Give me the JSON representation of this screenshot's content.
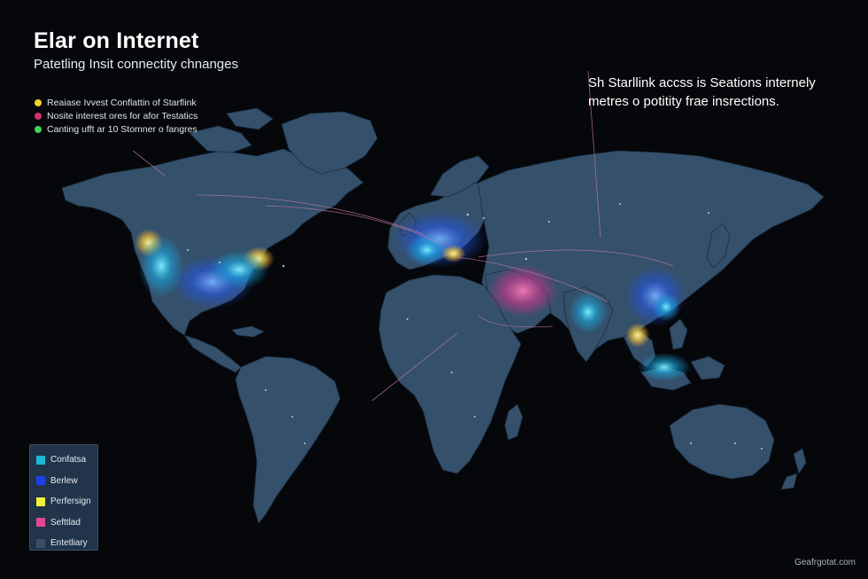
{
  "title": "Elar on Internet",
  "subtitle": "Patetling Insit connectity chnanges",
  "top_legend": [
    {
      "label": "Reaiase Ivvest Conflattin of Starflink",
      "color": "#f2d230"
    },
    {
      "label": "Nosite interest ores for afor Testatics",
      "color": "#d4336e"
    },
    {
      "label": "Canting ufft ar 10 Stomner o fangres",
      "color": "#3fd35a"
    }
  ],
  "annotation": {
    "line1": "Sh Starllink accss is Seations internely",
    "line2": "metres o potitity frae insrections."
  },
  "legend": [
    {
      "label": "Confatsa",
      "color": "#19b8d6"
    },
    {
      "label": "Berlew",
      "color": "#1c40e8"
    },
    {
      "label": "Perfersign",
      "color": "#f3f03a"
    },
    {
      "label": "Sefttlad",
      "color": "#e04a8f"
    },
    {
      "label": "Entetliary",
      "color": "#3b4e63"
    }
  ],
  "credit": "Geafrgotat.com",
  "colors": {
    "background": "#05070b",
    "land": "#35506a",
    "border_lines": "#1f3348",
    "connection_lines": "#c97ca6"
  }
}
